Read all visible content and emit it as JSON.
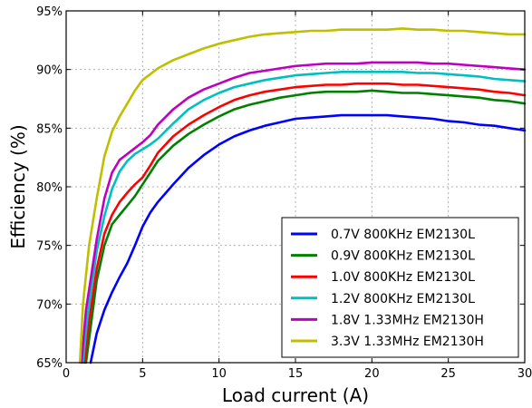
{
  "chart_data": {
    "type": "line",
    "title": "",
    "xlabel": "Load current (A)",
    "ylabel": "Efficiency (%)",
    "xlim": [
      0,
      30
    ],
    "ylim": [
      65,
      95
    ],
    "xticks": [
      0,
      5,
      10,
      15,
      20,
      25,
      30
    ],
    "xtick_labels": [
      "0",
      "5",
      "10",
      "15",
      "20",
      "25",
      "30"
    ],
    "yticks": [
      65,
      70,
      75,
      80,
      85,
      90,
      95
    ],
    "ytick_labels": [
      "65%",
      "70%",
      "75%",
      "80%",
      "85%",
      "90%",
      "95%"
    ],
    "grid": true,
    "legend_position": "bottom-right",
    "series": [
      {
        "name": "0.7V 800KHz EM2130L",
        "color": "#0000ff",
        "x": [
          1.6,
          2,
          2.5,
          3,
          3.5,
          4,
          4.5,
          5,
          5.5,
          6,
          7,
          8,
          9,
          10,
          11,
          12,
          13,
          14,
          15,
          16,
          17,
          18,
          19,
          20,
          21,
          22,
          23,
          24,
          25,
          26,
          27,
          28,
          29,
          30
        ],
        "y": [
          65,
          67.5,
          69.5,
          71,
          72.3,
          73.5,
          75,
          76.6,
          77.8,
          78.7,
          80.2,
          81.6,
          82.7,
          83.6,
          84.3,
          84.8,
          85.2,
          85.5,
          85.8,
          85.9,
          86.0,
          86.1,
          86.1,
          86.1,
          86.1,
          86.0,
          85.9,
          85.8,
          85.6,
          85.5,
          85.3,
          85.2,
          85.0,
          84.8
        ]
      },
      {
        "name": "0.9V 800KHz EM2130L",
        "color": "#008000",
        "x": [
          1.3,
          1.6,
          2,
          2.5,
          3,
          3.5,
          4,
          4.5,
          5,
          5.5,
          6,
          7,
          8,
          9,
          10,
          11,
          12,
          13,
          14,
          15,
          16,
          17,
          18,
          19,
          20,
          21,
          22,
          23,
          24,
          25,
          26,
          27,
          28,
          29,
          30
        ],
        "y": [
          65,
          68,
          72,
          75,
          76.8,
          77.6,
          78.4,
          79.2,
          80.2,
          81.2,
          82.2,
          83.5,
          84.5,
          85.3,
          86.0,
          86.6,
          87.0,
          87.3,
          87.6,
          87.8,
          88.0,
          88.1,
          88.1,
          88.1,
          88.2,
          88.1,
          88.0,
          88.0,
          87.9,
          87.8,
          87.7,
          87.6,
          87.4,
          87.3,
          87.1
        ]
      },
      {
        "name": "1.0V 800KHz EM2130L",
        "color": "#ff0000",
        "x": [
          1.2,
          1.5,
          2,
          2.5,
          3,
          3.5,
          4,
          4.5,
          5,
          5.5,
          6,
          7,
          8,
          9,
          10,
          11,
          12,
          13,
          14,
          15,
          16,
          17,
          18,
          19,
          20,
          21,
          22,
          23,
          24,
          25,
          26,
          27,
          28,
          29,
          30
        ],
        "y": [
          65,
          68.5,
          73,
          76,
          77.6,
          78.7,
          79.5,
          80.2,
          80.8,
          81.8,
          82.9,
          84.3,
          85.3,
          86.1,
          86.8,
          87.4,
          87.8,
          88.1,
          88.3,
          88.5,
          88.6,
          88.7,
          88.7,
          88.8,
          88.8,
          88.8,
          88.7,
          88.7,
          88.6,
          88.5,
          88.4,
          88.3,
          88.1,
          88.0,
          87.8
        ]
      },
      {
        "name": "1.2V 800KHz EM2130L",
        "color": "#00bfbf",
        "x": [
          1.1,
          1.4,
          2,
          2.5,
          3,
          3.5,
          4,
          4.5,
          5,
          5.5,
          6,
          7,
          8,
          9,
          10,
          11,
          12,
          13,
          14,
          15,
          16,
          17,
          18,
          19,
          20,
          21,
          22,
          23,
          24,
          25,
          26,
          27,
          28,
          29,
          30
        ],
        "y": [
          65,
          69,
          74.5,
          77.5,
          79.8,
          81.3,
          82.2,
          82.8,
          83.2,
          83.6,
          84.1,
          85.4,
          86.6,
          87.4,
          88.0,
          88.5,
          88.8,
          89.1,
          89.3,
          89.5,
          89.6,
          89.7,
          89.8,
          89.8,
          89.8,
          89.8,
          89.8,
          89.7,
          89.7,
          89.6,
          89.5,
          89.4,
          89.2,
          89.1,
          89.0
        ]
      },
      {
        "name": "1.8V 1.33MHz EM2130H",
        "color": "#bf00bf",
        "x": [
          1.0,
          1.3,
          2,
          2.5,
          3,
          3.5,
          4,
          4.5,
          5,
          5.5,
          6,
          7,
          8,
          9,
          10,
          11,
          12,
          13,
          14,
          15,
          16,
          17,
          18,
          19,
          20,
          21,
          22,
          23,
          24,
          25,
          26,
          27,
          28,
          29,
          30
        ],
        "y": [
          65,
          69.5,
          75.5,
          79,
          81.2,
          82.3,
          82.8,
          83.3,
          83.8,
          84.4,
          85.3,
          86.6,
          87.6,
          88.3,
          88.8,
          89.3,
          89.7,
          89.9,
          90.1,
          90.3,
          90.4,
          90.5,
          90.5,
          90.5,
          90.6,
          90.6,
          90.6,
          90.6,
          90.5,
          90.5,
          90.4,
          90.3,
          90.2,
          90.1,
          90.0
        ]
      },
      {
        "name": "3.3V 1.33MHz EM2130H",
        "color": "#bfbf00",
        "x": [
          0.9,
          1.1,
          1.5,
          2,
          2.5,
          3,
          3.5,
          4,
          4.5,
          5,
          5.5,
          6,
          7,
          8,
          9,
          10,
          11,
          12,
          13,
          14,
          15,
          16,
          17,
          18,
          19,
          20,
          21,
          22,
          23,
          24,
          25,
          26,
          27,
          28,
          29,
          30
        ],
        "y": [
          65,
          70,
          75,
          79,
          82.6,
          84.7,
          86,
          87.1,
          88.2,
          89.1,
          89.6,
          90.1,
          90.8,
          91.3,
          91.8,
          92.2,
          92.5,
          92.8,
          93.0,
          93.1,
          93.2,
          93.3,
          93.3,
          93.4,
          93.4,
          93.4,
          93.4,
          93.5,
          93.4,
          93.4,
          93.3,
          93.3,
          93.2,
          93.1,
          93.0,
          93.0
        ]
      }
    ]
  }
}
